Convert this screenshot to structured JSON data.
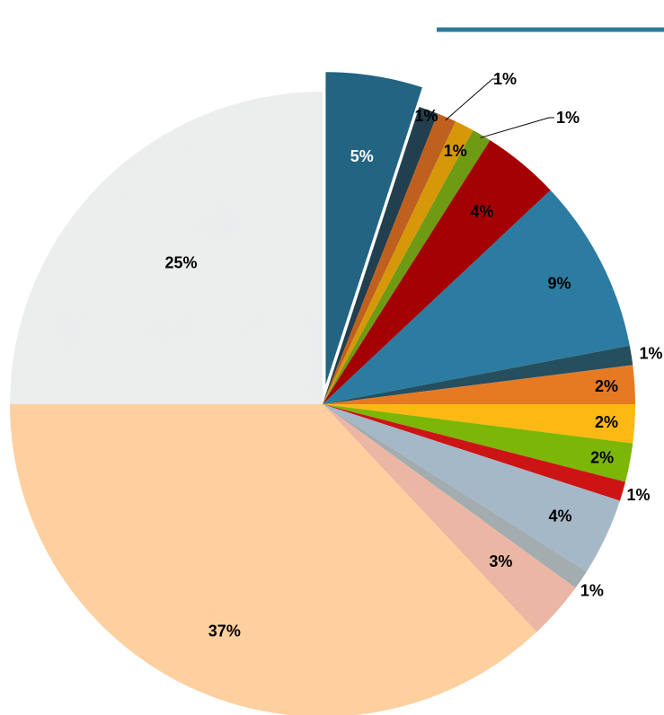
{
  "chart_data": {
    "type": "pie",
    "title": "",
    "slices": [
      {
        "label": "5%",
        "value": 5,
        "color": "#226482",
        "exploded": true,
        "text_color": "#ffffff"
      },
      {
        "label": "1%",
        "value": 1,
        "color": "#213f4e"
      },
      {
        "label": "1%",
        "value": 1,
        "color": "#c0601f"
      },
      {
        "label": "1%",
        "value": 1,
        "color": "#d69808"
      },
      {
        "label": "1%",
        "value": 1,
        "color": "#6f9a14"
      },
      {
        "label": "4%",
        "value": 4,
        "color": "#a30103"
      },
      {
        "label": "9%",
        "value": 9,
        "color": "#2c7ca1"
      },
      {
        "label": "1%",
        "value": 1,
        "color": "#254e5f"
      },
      {
        "label": "2%",
        "value": 2,
        "color": "#e57a23"
      },
      {
        "label": "2%",
        "value": 2,
        "color": "#fcb913"
      },
      {
        "label": "2%",
        "value": 2,
        "color": "#7cb607"
      },
      {
        "label": "1%",
        "value": 1,
        "color": "#cc1414"
      },
      {
        "label": "4%",
        "value": 4,
        "color": "#a5b8c8"
      },
      {
        "label": "1%",
        "value": 1,
        "color": "#a3acaf"
      },
      {
        "label": "3%",
        "value": 3,
        "color": "#ebb6a3"
      },
      {
        "label": "37%",
        "value": 37,
        "color": "#fed09f"
      },
      {
        "label": "25%",
        "value": 25,
        "color": "marble"
      }
    ]
  }
}
